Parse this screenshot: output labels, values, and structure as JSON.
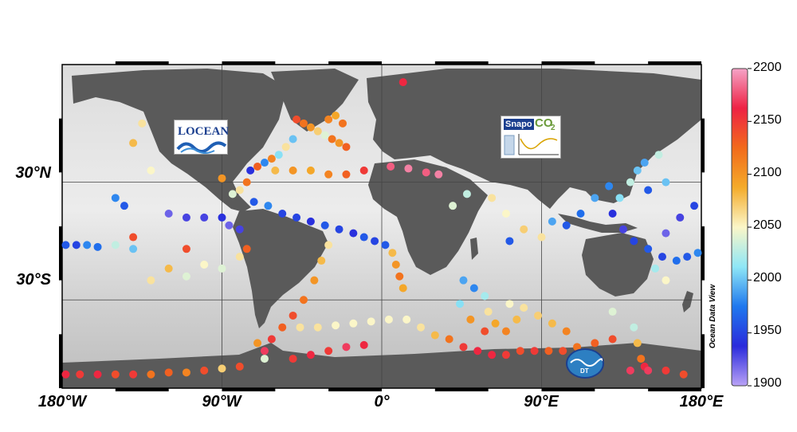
{
  "map": {
    "lat_labels": [
      "30°N",
      "30°S"
    ],
    "lon_labels": [
      "180°W",
      "90°W",
      "0°",
      "90°E",
      "180°E"
    ],
    "lon_range": [
      -180,
      180
    ],
    "lat_range": [
      -75,
      90
    ],
    "gridlines": true,
    "land_color": "#5a5a5a",
    "ocean_colors": [
      "#c8c8c8",
      "#ececec"
    ],
    "credit": "Ocean Data View"
  },
  "colorbar": {
    "min": 1900,
    "max": 2200,
    "ticks": [
      "2200",
      "2150",
      "2100",
      "2050",
      "2000",
      "1950",
      "1900"
    ],
    "colors": [
      "#f5a3c7",
      "#ee2244",
      "#f26a1c",
      "#f4ab2a",
      "#fbf6c8",
      "#8fe7f6",
      "#1f78ee",
      "#2a2bdc",
      "#b9a2f6"
    ]
  },
  "logos": {
    "locean": "LOCEAN",
    "snapo": "Snapo",
    "snapo_co2": "CO",
    "snapo_sub": "2",
    "dt": "DT"
  },
  "observations": [
    {
      "lon": 12,
      "lat": 81,
      "value": 2160
    },
    {
      "lon": -48,
      "lat": 62,
      "value": 2140
    },
    {
      "lon": -44,
      "lat": 60,
      "value": 2120
    },
    {
      "lon": -40,
      "lat": 58,
      "value": 2100
    },
    {
      "lon": -36,
      "lat": 56,
      "value": 2070
    },
    {
      "lon": -32,
      "lat": 54,
      "value": 2040
    },
    {
      "lon": -28,
      "lat": 52,
      "value": 2120
    },
    {
      "lon": -24,
      "lat": 50,
      "value": 2100
    },
    {
      "lon": -20,
      "lat": 48,
      "value": 2130
    },
    {
      "lon": -30,
      "lat": 62,
      "value": 2110
    },
    {
      "lon": -26,
      "lat": 64,
      "value": 2090
    },
    {
      "lon": -22,
      "lat": 60,
      "value": 2120
    },
    {
      "lon": -50,
      "lat": 52,
      "value": 2000
    },
    {
      "lon": -54,
      "lat": 48,
      "value": 2060
    },
    {
      "lon": -58,
      "lat": 44,
      "value": 2010
    },
    {
      "lon": -62,
      "lat": 42,
      "value": 2110
    },
    {
      "lon": -66,
      "lat": 40,
      "value": 1980
    },
    {
      "lon": -70,
      "lat": 38,
      "value": 2130
    },
    {
      "lon": -74,
      "lat": 36,
      "value": 1940
    },
    {
      "lon": -60,
      "lat": 36,
      "value": 2080
    },
    {
      "lon": -50,
      "lat": 36,
      "value": 2100
    },
    {
      "lon": -40,
      "lat": 36,
      "value": 2090
    },
    {
      "lon": -30,
      "lat": 34,
      "value": 2110
    },
    {
      "lon": -20,
      "lat": 34,
      "value": 2130
    },
    {
      "lon": -10,
      "lat": 36,
      "value": 2150
    },
    {
      "lon": 5,
      "lat": 38,
      "value": 2180
    },
    {
      "lon": 15,
      "lat": 37,
      "value": 2190
    },
    {
      "lon": 25,
      "lat": 35,
      "value": 2180
    },
    {
      "lon": 32,
      "lat": 34,
      "value": 2190
    },
    {
      "lon": -76,
      "lat": 30,
      "value": 2120
    },
    {
      "lon": -80,
      "lat": 26,
      "value": 2060
    },
    {
      "lon": -84,
      "lat": 24,
      "value": 2040
    },
    {
      "lon": -72,
      "lat": 20,
      "value": 1960
    },
    {
      "lon": -64,
      "lat": 18,
      "value": 1980
    },
    {
      "lon": -56,
      "lat": 14,
      "value": 1950
    },
    {
      "lon": -48,
      "lat": 12,
      "value": 1950
    },
    {
      "lon": -40,
      "lat": 10,
      "value": 1940
    },
    {
      "lon": -32,
      "lat": 8,
      "value": 1960
    },
    {
      "lon": -24,
      "lat": 6,
      "value": 1950
    },
    {
      "lon": -16,
      "lat": 4,
      "value": 1940
    },
    {
      "lon": -10,
      "lat": 2,
      "value": 1960
    },
    {
      "lon": -4,
      "lat": 0,
      "value": 1950
    },
    {
      "lon": 2,
      "lat": -2,
      "value": 1960
    },
    {
      "lon": 6,
      "lat": -6,
      "value": 2080
    },
    {
      "lon": 8,
      "lat": -12,
      "value": 2100
    },
    {
      "lon": 10,
      "lat": -18,
      "value": 2120
    },
    {
      "lon": 12,
      "lat": -24,
      "value": 2090
    },
    {
      "lon": -30,
      "lat": -2,
      "value": 2060
    },
    {
      "lon": -34,
      "lat": -10,
      "value": 2080
    },
    {
      "lon": -38,
      "lat": -20,
      "value": 2100
    },
    {
      "lon": -44,
      "lat": -30,
      "value": 2120
    },
    {
      "lon": -50,
      "lat": -38,
      "value": 2140
    },
    {
      "lon": -56,
      "lat": -44,
      "value": 2130
    },
    {
      "lon": -62,
      "lat": -50,
      "value": 2150
    },
    {
      "lon": -66,
      "lat": -56,
      "value": 2170
    },
    {
      "lon": -70,
      "lat": -52,
      "value": 2100
    },
    {
      "lon": -66,
      "lat": -60,
      "value": 2040
    },
    {
      "lon": -46,
      "lat": -44,
      "value": 2060
    },
    {
      "lon": -36,
      "lat": -44,
      "value": 2060
    },
    {
      "lon": -26,
      "lat": -43,
      "value": 2050
    },
    {
      "lon": -16,
      "lat": -42,
      "value": 2050
    },
    {
      "lon": -6,
      "lat": -41,
      "value": 2050
    },
    {
      "lon": 4,
      "lat": -40,
      "value": 2050
    },
    {
      "lon": 14,
      "lat": -40,
      "value": 2050
    },
    {
      "lon": 22,
      "lat": -44,
      "value": 2060
    },
    {
      "lon": 30,
      "lat": -48,
      "value": 2080
    },
    {
      "lon": 38,
      "lat": -50,
      "value": 2120
    },
    {
      "lon": 46,
      "lat": -54,
      "value": 2150
    },
    {
      "lon": 54,
      "lat": -56,
      "value": 2160
    },
    {
      "lon": 62,
      "lat": -58,
      "value": 2160
    },
    {
      "lon": 70,
      "lat": -58,
      "value": 2150
    },
    {
      "lon": 78,
      "lat": -56,
      "value": 2140
    },
    {
      "lon": 86,
      "lat": -56,
      "value": 2150
    },
    {
      "lon": 94,
      "lat": -56,
      "value": 2130
    },
    {
      "lon": 102,
      "lat": -56,
      "value": 2140
    },
    {
      "lon": 110,
      "lat": -54,
      "value": 2120
    },
    {
      "lon": 120,
      "lat": -52,
      "value": 2130
    },
    {
      "lon": 130,
      "lat": -50,
      "value": 2140
    },
    {
      "lon": 46,
      "lat": -20,
      "value": 1990
    },
    {
      "lon": 52,
      "lat": -24,
      "value": 1980
    },
    {
      "lon": 58,
      "lat": -28,
      "value": 2020
    },
    {
      "lon": 60,
      "lat": -36,
      "value": 2060
    },
    {
      "lon": 64,
      "lat": -42,
      "value": 2090
    },
    {
      "lon": 70,
      "lat": -46,
      "value": 2110
    },
    {
      "lon": 76,
      "lat": -40,
      "value": 2080
    },
    {
      "lon": 80,
      "lat": -34,
      "value": 2060
    },
    {
      "lon": 88,
      "lat": -38,
      "value": 2070
    },
    {
      "lon": 96,
      "lat": -42,
      "value": 2080
    },
    {
      "lon": 104,
      "lat": -46,
      "value": 2110
    },
    {
      "lon": 58,
      "lat": -46,
      "value": 2140
    },
    {
      "lon": 50,
      "lat": -40,
      "value": 2100
    },
    {
      "lon": 44,
      "lat": -32,
      "value": 2010
    },
    {
      "lon": 72,
      "lat": -32,
      "value": 2050
    },
    {
      "lon": 142,
      "lat": -44,
      "value": 2030
    },
    {
      "lon": 144,
      "lat": -52,
      "value": 2080
    },
    {
      "lon": 146,
      "lat": -60,
      "value": 2120
    },
    {
      "lon": 148,
      "lat": -64,
      "value": 2160
    },
    {
      "lon": 150,
      "lat": -66,
      "value": 2170
    },
    {
      "lon": 160,
      "lat": -66,
      "value": 2150
    },
    {
      "lon": 170,
      "lat": -68,
      "value": 2140
    },
    {
      "lon": 140,
      "lat": -66,
      "value": 2170
    },
    {
      "lon": -178,
      "lat": -68,
      "value": 2160
    },
    {
      "lon": -170,
      "lat": -68,
      "value": 2150
    },
    {
      "lon": -160,
      "lat": -68,
      "value": 2160
    },
    {
      "lon": -150,
      "lat": -68,
      "value": 2140
    },
    {
      "lon": -140,
      "lat": -68,
      "value": 2150
    },
    {
      "lon": -130,
      "lat": -68,
      "value": 2120
    },
    {
      "lon": -120,
      "lat": -67,
      "value": 2130
    },
    {
      "lon": -110,
      "lat": -67,
      "value": 2110
    },
    {
      "lon": -100,
      "lat": -66,
      "value": 2140
    },
    {
      "lon": -90,
      "lat": -65,
      "value": 2070
    },
    {
      "lon": -80,
      "lat": -64,
      "value": 2140
    },
    {
      "lon": -50,
      "lat": -60,
      "value": 2150
    },
    {
      "lon": -40,
      "lat": -58,
      "value": 2160
    },
    {
      "lon": -30,
      "lat": -56,
      "value": 2150
    },
    {
      "lon": -20,
      "lat": -54,
      "value": 2170
    },
    {
      "lon": -10,
      "lat": -53,
      "value": 2160
    },
    {
      "lon": -178,
      "lat": -2,
      "value": 1960
    },
    {
      "lon": -172,
      "lat": -2,
      "value": 1950
    },
    {
      "lon": -166,
      "lat": -2,
      "value": 1980
    },
    {
      "lon": -160,
      "lat": -3,
      "value": 1970
    },
    {
      "lon": -150,
      "lat": -2,
      "value": 2030
    },
    {
      "lon": -140,
      "lat": -4,
      "value": 2000
    },
    {
      "lon": -140,
      "lat": 2,
      "value": 2140
    },
    {
      "lon": -130,
      "lat": -20,
      "value": 2060
    },
    {
      "lon": -120,
      "lat": -14,
      "value": 2080
    },
    {
      "lon": -110,
      "lat": -18,
      "value": 2040
    },
    {
      "lon": -100,
      "lat": -12,
      "value": 2050
    },
    {
      "lon": -90,
      "lat": -14,
      "value": 2040
    },
    {
      "lon": -80,
      "lat": -8,
      "value": 2060
    },
    {
      "lon": -120,
      "lat": 14,
      "value": 1920
    },
    {
      "lon": -110,
      "lat": 12,
      "value": 1930
    },
    {
      "lon": -100,
      "lat": 12,
      "value": 1930
    },
    {
      "lon": -90,
      "lat": 12,
      "value": 1940
    },
    {
      "lon": -86,
      "lat": 8,
      "value": 1920
    },
    {
      "lon": -80,
      "lat": 6,
      "value": 1930
    },
    {
      "lon": -150,
      "lat": 22,
      "value": 1980
    },
    {
      "lon": -145,
      "lat": 18,
      "value": 1960
    },
    {
      "lon": -130,
      "lat": 36,
      "value": 2050
    },
    {
      "lon": -140,
      "lat": 50,
      "value": 2080
    },
    {
      "lon": -135,
      "lat": 60,
      "value": 2060
    },
    {
      "lon": -90,
      "lat": 32,
      "value": 2100
    },
    {
      "lon": -76,
      "lat": -4,
      "value": 2130
    },
    {
      "lon": -110,
      "lat": -4,
      "value": 2140
    },
    {
      "lon": 40,
      "lat": 18,
      "value": 2040
    },
    {
      "lon": 48,
      "lat": 24,
      "value": 2030
    },
    {
      "lon": 62,
      "lat": 22,
      "value": 2060
    },
    {
      "lon": 70,
      "lat": 14,
      "value": 2050
    },
    {
      "lon": 80,
      "lat": 6,
      "value": 2070
    },
    {
      "lon": 90,
      "lat": 2,
      "value": 2060
    },
    {
      "lon": 72,
      "lat": 0,
      "value": 1960
    },
    {
      "lon": 120,
      "lat": 22,
      "value": 1990
    },
    {
      "lon": 128,
      "lat": 28,
      "value": 1980
    },
    {
      "lon": 134,
      "lat": 22,
      "value": 2010
    },
    {
      "lon": 140,
      "lat": 30,
      "value": 2030
    },
    {
      "lon": 144,
      "lat": 36,
      "value": 2000
    },
    {
      "lon": 148,
      "lat": 40,
      "value": 1990
    },
    {
      "lon": 156,
      "lat": 44,
      "value": 2030
    },
    {
      "lon": 160,
      "lat": 30,
      "value": 2000
    },
    {
      "lon": 150,
      "lat": 26,
      "value": 1960
    },
    {
      "lon": 130,
      "lat": 14,
      "value": 1940
    },
    {
      "lon": 136,
      "lat": 6,
      "value": 1930
    },
    {
      "lon": 142,
      "lat": 0,
      "value": 1950
    },
    {
      "lon": 150,
      "lat": -4,
      "value": 1960
    },
    {
      "lon": 158,
      "lat": -8,
      "value": 1950
    },
    {
      "lon": 166,
      "lat": -10,
      "value": 1970
    },
    {
      "lon": 172,
      "lat": -8,
      "value": 1960
    },
    {
      "lon": 178,
      "lat": -6,
      "value": 1980
    },
    {
      "lon": 160,
      "lat": 4,
      "value": 1920
    },
    {
      "lon": 168,
      "lat": 12,
      "value": 1930
    },
    {
      "lon": 176,
      "lat": 18,
      "value": 1950
    },
    {
      "lon": 112,
      "lat": 14,
      "value": 1970
    },
    {
      "lon": 104,
      "lat": 8,
      "value": 1960
    },
    {
      "lon": 96,
      "lat": 10,
      "value": 1990
    },
    {
      "lon": 154,
      "lat": -14,
      "value": 2020
    },
    {
      "lon": 160,
      "lat": -20,
      "value": 2050
    },
    {
      "lon": 130,
      "lat": -36,
      "value": 2040
    }
  ]
}
